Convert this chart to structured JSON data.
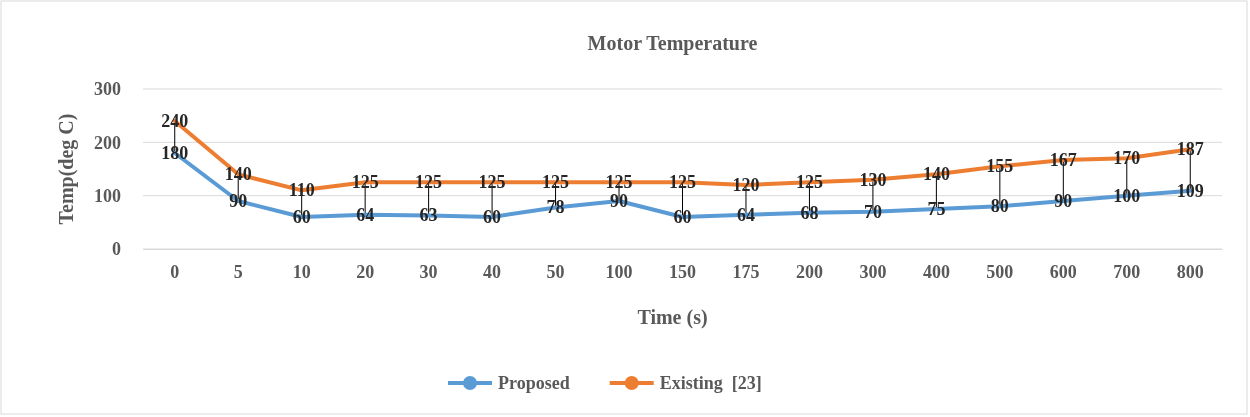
{
  "chart_data": {
    "type": "line",
    "title": "Motor Temperature",
    "xlabel": "Time (s)",
    "ylabel": "Temp(deg C)",
    "categories": [
      "0",
      "5",
      "10",
      "20",
      "30",
      "40",
      "50",
      "100",
      "150",
      "175",
      "200",
      "300",
      "400",
      "500",
      "600",
      "700",
      "800"
    ],
    "series": [
      {
        "name": "Proposed",
        "color": "#5b9bd5",
        "values": [
          180,
          90,
          60,
          64,
          63,
          60,
          78,
          90,
          60,
          64,
          68,
          70,
          75,
          80,
          90,
          100,
          109
        ]
      },
      {
        "name": "Existing  [23]",
        "color": "#ed7d31",
        "values": [
          240,
          140,
          110,
          125,
          125,
          125,
          125,
          125,
          125,
          120,
          125,
          130,
          140,
          155,
          167,
          170,
          187
        ]
      }
    ],
    "ylim": [
      0,
      300
    ],
    "yticks": [
      0,
      100,
      200,
      300
    ],
    "grid": "y",
    "legend": "bottom",
    "data_labels": true,
    "marker": "none",
    "line_style": "solid"
  }
}
